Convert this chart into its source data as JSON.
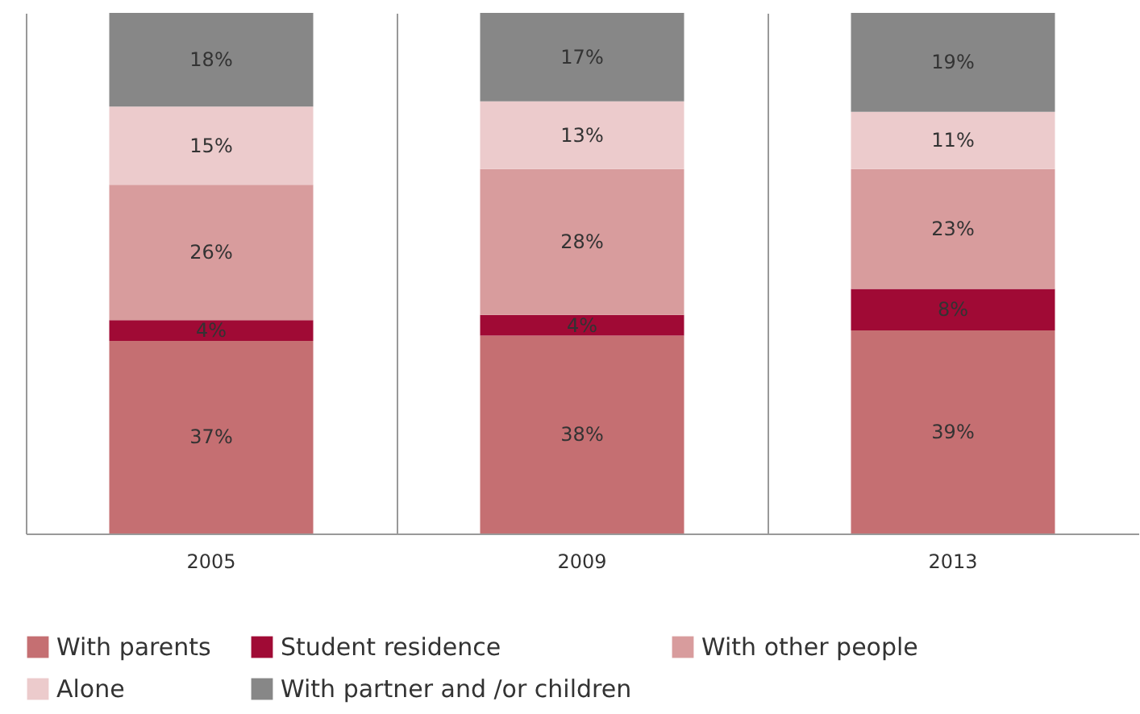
{
  "chart_data": {
    "type": "bar",
    "stacked": true,
    "categories": [
      "2005",
      "2009",
      "2013"
    ],
    "series": [
      {
        "name": "With parents",
        "color": "#c56f72",
        "values": [
          37,
          38,
          39
        ],
        "value_labels": [
          "37%",
          "38%",
          "39%"
        ]
      },
      {
        "name": "Student residence",
        "color": "#a00a35",
        "values": [
          4,
          4,
          8
        ],
        "value_labels": [
          "4%",
          "4%",
          "8%"
        ]
      },
      {
        "name": "With other people",
        "color": "#d89c9d",
        "values": [
          26,
          28,
          23
        ],
        "value_labels": [
          "26%",
          "28%",
          "23%"
        ]
      },
      {
        "name": "Alone",
        "color": "#eccbcc",
        "values": [
          15,
          13,
          11
        ],
        "value_labels": [
          "15%",
          "13%",
          "11%"
        ]
      },
      {
        "name": "With partner and /or children",
        "color": "#878787",
        "values": [
          18,
          17,
          19
        ],
        "value_labels": [
          "18%",
          "17%",
          "19%"
        ]
      }
    ],
    "tick_labels": "x",
    "grid": "x",
    "legend": "bottom"
  }
}
